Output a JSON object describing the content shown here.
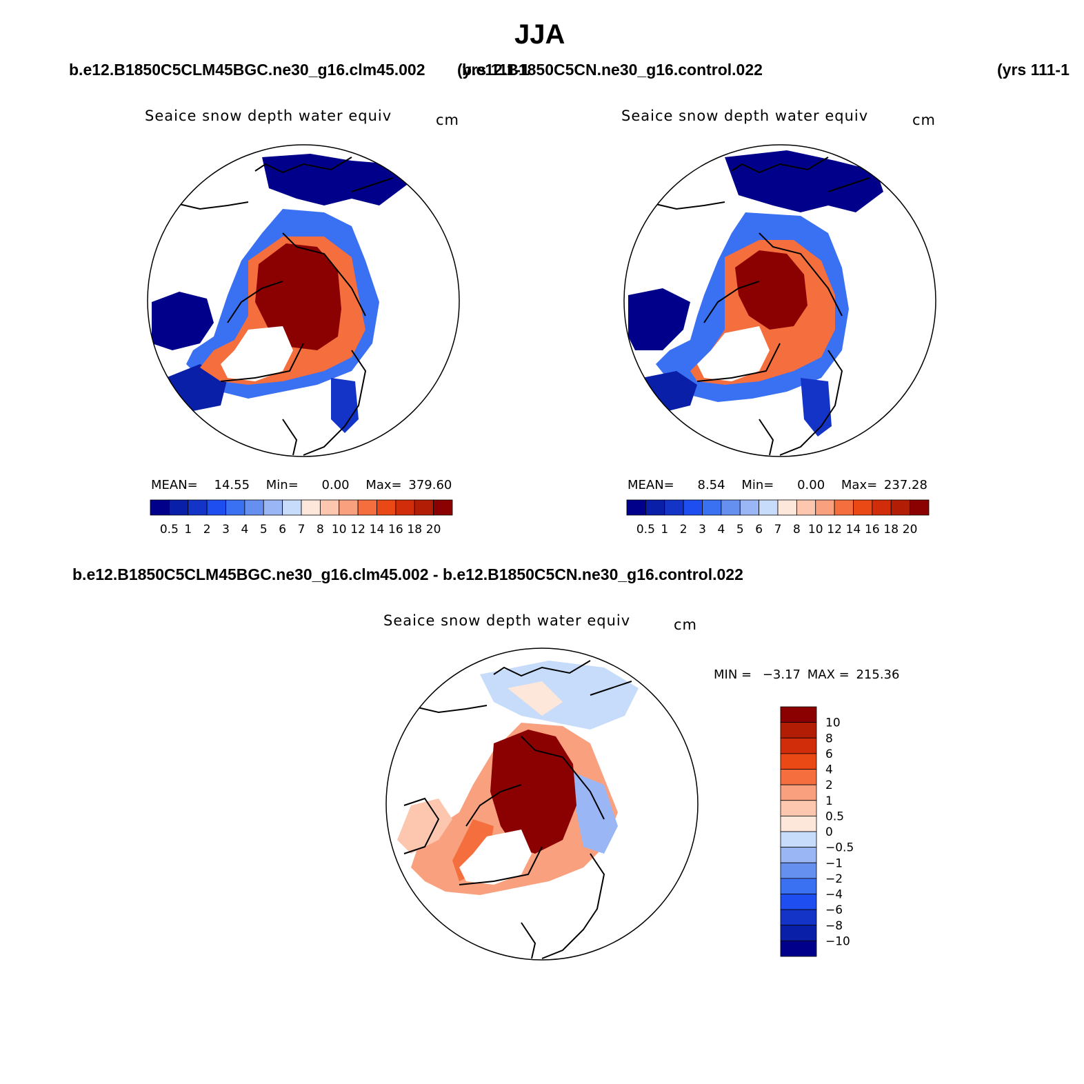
{
  "main_title": "JJA",
  "headers": {
    "left_case": "b.e12.B1850C5CLM45BGC.ne30_g16.clm45.002",
    "left_years": "(yrs 111-1",
    "right_case": "b.e12.B1850C5CN.ne30_g16.control.022",
    "right_years": "(yrs 111-1",
    "diff_case": "b.e12.B1850C5CLM45BGC.ne30_g16.clm45.002 - b.e12.B1850C5CN.ne30_g16.control.022"
  },
  "panels": [
    {
      "variable": "Seaice snow depth water equiv",
      "units": "cm",
      "stats": {
        "mean_label": "MEAN=",
        "mean": "14.55",
        "min_label": "Min=",
        "min": "0.00",
        "max_label": "Max=",
        "max": "379.60"
      },
      "colorbar_labels": [
        "0.5",
        "1",
        "2",
        "3",
        "4",
        "5",
        "6",
        "7",
        "8",
        "10",
        "12",
        "14",
        "16",
        "18",
        "20"
      ]
    },
    {
      "variable": "Seaice snow depth water equiv",
      "units": "cm",
      "stats": {
        "mean_label": "MEAN=",
        "mean": "8.54",
        "min_label": "Min=",
        "min": "0.00",
        "max_label": "Max=",
        "max": "237.28"
      },
      "colorbar_labels": [
        "0.5",
        "1",
        "2",
        "3",
        "4",
        "5",
        "6",
        "7",
        "8",
        "10",
        "12",
        "14",
        "16",
        "18",
        "20"
      ]
    },
    {
      "variable": "Seaice snow depth water equiv",
      "units": "cm",
      "stats": {
        "min_label": "MIN =",
        "min": "−3.17",
        "max_label": "MAX =",
        "max": "215.36"
      },
      "colorbar_labels": [
        "10",
        "8",
        "6",
        "4",
        "2",
        "1",
        "0.5",
        "0",
        "−0.5",
        "−1",
        "−2",
        "−4",
        "−6",
        "−8",
        "−10"
      ]
    }
  ],
  "colors": {
    "abs_scale": [
      "#00008b",
      "#0a1fa8",
      "#1434c8",
      "#1f4ef0",
      "#3a70f2",
      "#6690f0",
      "#9ab6f5",
      "#c7dcfa",
      "#fde7da",
      "#fcc7ae",
      "#f9a07e",
      "#f56f3e",
      "#ea4815",
      "#d22d0a",
      "#b21e05",
      "#8b0000"
    ],
    "diff_scale": [
      "#8b0000",
      "#b21e05",
      "#d22d0a",
      "#ea4815",
      "#f56f3e",
      "#f9a07e",
      "#fcc7ae",
      "#fde7da",
      "#c7dcfa",
      "#9ab6f5",
      "#6690f0",
      "#3a70f2",
      "#1f4ef0",
      "#1434c8",
      "#0a1fa8",
      "#00008b"
    ]
  }
}
